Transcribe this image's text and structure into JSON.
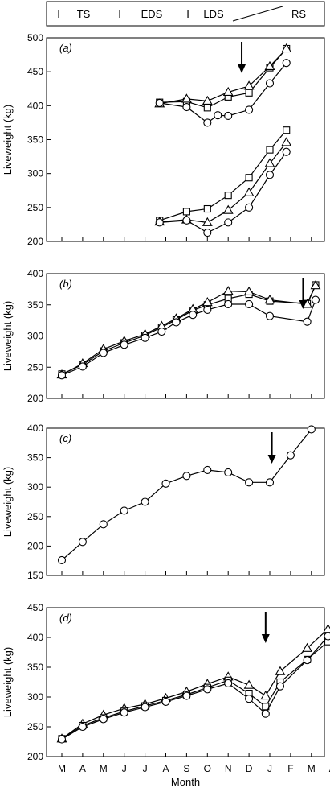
{
  "season_bar": {
    "items": [
      {
        "label": "I"
      },
      {
        "label": "TS"
      },
      {
        "label": "I"
      },
      {
        "label": "EDS"
      },
      {
        "label": "I"
      },
      {
        "label": "LDS"
      },
      {
        "label": ""
      },
      {
        "label": "RS"
      }
    ]
  },
  "x_axis": {
    "label": "Month",
    "ticks": [
      "M",
      "A",
      "M",
      "J",
      "J",
      "A",
      "S",
      "O",
      "N",
      "D",
      "J",
      "F",
      "M",
      "A"
    ]
  },
  "chart_data": [
    {
      "type": "line",
      "panel_label": "(a)",
      "ylabel": "Liveweight (kg)",
      "ylim": [
        200,
        500
      ],
      "yticks": [
        200,
        250,
        300,
        350,
        400,
        450,
        500
      ],
      "arrow_x": 8.65,
      "series": [
        {
          "marker": "square",
          "points": [
            [
              4.7,
              405
            ],
            [
              6.0,
              406
            ],
            [
              7.0,
              397
            ],
            [
              8.0,
              413
            ],
            [
              9.0,
              419
            ],
            [
              10.0,
              456
            ],
            [
              10.8,
              484
            ]
          ]
        },
        {
          "marker": "triangle",
          "points": [
            [
              4.7,
              403
            ],
            [
              6.0,
              410
            ],
            [
              7.0,
              407
            ],
            [
              8.0,
              420
            ],
            [
              9.0,
              429
            ],
            [
              10.0,
              458
            ],
            [
              10.8,
              484
            ]
          ]
        },
        {
          "marker": "circle",
          "points": [
            [
              4.7,
              404
            ],
            [
              6.0,
              398
            ],
            [
              7.0,
              375
            ],
            [
              7.5,
              386
            ],
            [
              8.0,
              385
            ],
            [
              9.0,
              394
            ],
            [
              10.0,
              433
            ],
            [
              10.8,
              463
            ]
          ]
        },
        {
          "marker": "square",
          "points": [
            [
              4.7,
              231
            ],
            [
              6.0,
              244
            ],
            [
              7.0,
              248
            ],
            [
              8.0,
              268
            ],
            [
              9.0,
              294
            ],
            [
              10.0,
              335
            ],
            [
              10.8,
              364
            ]
          ]
        },
        {
          "marker": "triangle",
          "points": [
            [
              4.7,
              229
            ],
            [
              6.0,
              232
            ],
            [
              7.0,
              228
            ],
            [
              8.0,
              246
            ],
            [
              9.0,
              272
            ],
            [
              10.0,
              315
            ],
            [
              10.8,
              346
            ]
          ]
        },
        {
          "marker": "circle",
          "points": [
            [
              4.7,
              228
            ],
            [
              6.0,
              231
            ],
            [
              7.0,
              213
            ],
            [
              8.0,
              228
            ],
            [
              9.0,
              250
            ],
            [
              10.0,
              298
            ],
            [
              10.8,
              332
            ]
          ]
        }
      ]
    },
    {
      "type": "line",
      "panel_label": "(b)",
      "ylabel": "Liveweight (kg)",
      "ylim": [
        200,
        400
      ],
      "yticks": [
        200,
        250,
        300,
        350,
        400
      ],
      "arrow_x": 11.6,
      "series": [
        {
          "marker": "square",
          "points": [
            [
              0,
              239
            ],
            [
              1,
              254
            ],
            [
              2,
              276
            ],
            [
              3,
              289
            ],
            [
              4,
              301
            ],
            [
              4.8,
              314
            ],
            [
              5.5,
              326
            ],
            [
              6.3,
              341
            ],
            [
              7,
              350
            ],
            [
              8,
              360
            ],
            [
              9,
              367
            ],
            [
              10,
              356
            ],
            [
              11.8,
              352
            ],
            [
              12.2,
              382
            ]
          ]
        },
        {
          "marker": "triangle",
          "points": [
            [
              0,
              238
            ],
            [
              1,
              256
            ],
            [
              2,
              279
            ],
            [
              3,
              292
            ],
            [
              4,
              303
            ],
            [
              4.8,
              316
            ],
            [
              5.5,
              328
            ],
            [
              6.3,
              343
            ],
            [
              7,
              354
            ],
            [
              8,
              372
            ],
            [
              9,
              371
            ],
            [
              10,
              358
            ],
            [
              11.8,
              351
            ],
            [
              12.2,
              381
            ]
          ]
        },
        {
          "marker": "circle",
          "points": [
            [
              0,
              237
            ],
            [
              1,
              251
            ],
            [
              2,
              273
            ],
            [
              3,
              286
            ],
            [
              4,
              297
            ],
            [
              4.8,
              307
            ],
            [
              5.5,
              322
            ],
            [
              6.3,
              334
            ],
            [
              7,
              342
            ],
            [
              8,
              351
            ],
            [
              9,
              351
            ],
            [
              10,
              332
            ],
            [
              11.8,
              323
            ],
            [
              12.2,
              358
            ]
          ]
        }
      ]
    },
    {
      "type": "line",
      "panel_label": "(c)",
      "ylabel": "Liveweight (kg)",
      "ylim": [
        150,
        400
      ],
      "yticks": [
        150,
        200,
        250,
        300,
        350,
        400
      ],
      "arrow_x": 10.1,
      "series": [
        {
          "marker": "circle",
          "points": [
            [
              0,
              176
            ],
            [
              1,
              207
            ],
            [
              2,
              237
            ],
            [
              3,
              260
            ],
            [
              4,
              275
            ],
            [
              5,
              306
            ],
            [
              6,
              319
            ],
            [
              7,
              329
            ],
            [
              8,
              325
            ],
            [
              9,
              308
            ],
            [
              10,
              308
            ],
            [
              11,
              354
            ],
            [
              12,
              398
            ]
          ]
        }
      ]
    },
    {
      "type": "line",
      "panel_label": "(d)",
      "ylabel": "Liveweight (kg)",
      "ylim": [
        200,
        450
      ],
      "yticks": [
        200,
        250,
        300,
        350,
        400,
        450
      ],
      "arrow_x": 9.8,
      "series": [
        {
          "marker": "triangle",
          "points": [
            [
              0,
              230
            ],
            [
              1,
              255
            ],
            [
              2,
              270
            ],
            [
              3,
              281
            ],
            [
              4,
              288
            ],
            [
              5,
              298
            ],
            [
              6,
              309
            ],
            [
              7,
              322
            ],
            [
              8,
              334
            ],
            [
              9,
              320
            ],
            [
              9.8,
              302
            ],
            [
              10.5,
              343
            ],
            [
              11.8,
              382
            ],
            [
              12.8,
              414
            ]
          ]
        },
        {
          "marker": "square",
          "points": [
            [
              0,
              230
            ],
            [
              1,
              252
            ],
            [
              2,
              265
            ],
            [
              3,
              276
            ],
            [
              4,
              285
            ],
            [
              5,
              294
            ],
            [
              6,
              304
            ],
            [
              7,
              316
            ],
            [
              8,
              328
            ],
            [
              9,
              306
            ],
            [
              9.8,
              284
            ],
            [
              10.5,
              325
            ],
            [
              11.8,
              363
            ],
            [
              12.8,
              393
            ]
          ]
        },
        {
          "marker": "circle",
          "points": [
            [
              0,
              229
            ],
            [
              1,
              250
            ],
            [
              2,
              263
            ],
            [
              3,
              274
            ],
            [
              4,
              283
            ],
            [
              5,
              292
            ],
            [
              6,
              302
            ],
            [
              7,
              313
            ],
            [
              8,
              323
            ],
            [
              9,
              297
            ],
            [
              9.8,
              272
            ],
            [
              10.5,
              318
            ],
            [
              11.8,
              362
            ],
            [
              12.8,
              402
            ]
          ]
        }
      ]
    }
  ]
}
